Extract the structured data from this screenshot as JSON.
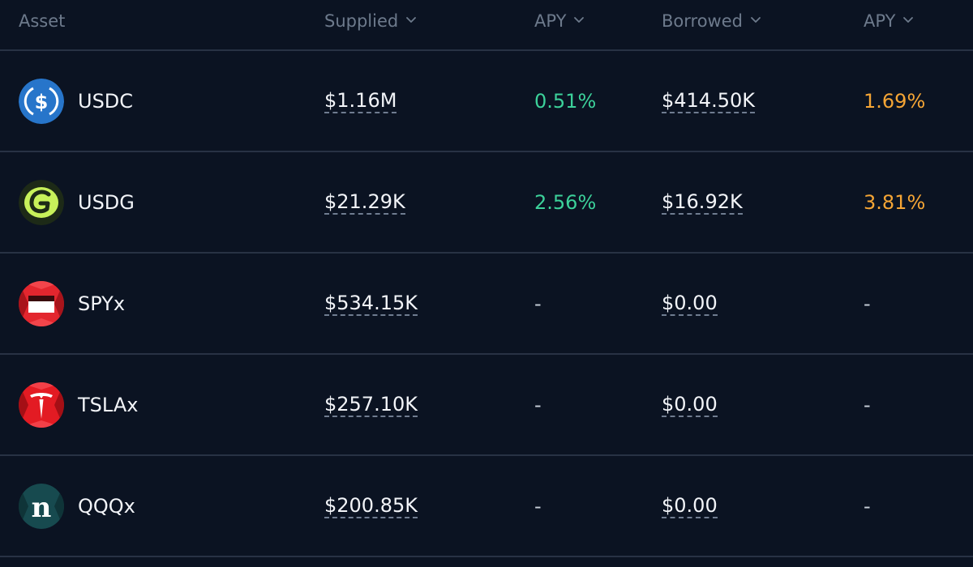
{
  "columns": {
    "asset": "Asset",
    "supplied": "Supplied",
    "supply_apy": "APY",
    "borrowed": "Borrowed",
    "borrow_apy": "APY"
  },
  "colors": {
    "background": "#0b1322",
    "supply_apy": "#3cd19a",
    "borrow_apy": "#f5a535",
    "header_text": "#6d7a8c"
  },
  "rows": [
    {
      "asset": "USDC",
      "icon": "usdc-icon",
      "supplied": "$1.16M",
      "supply_apy": "0.51%",
      "borrowed": "$414.50K",
      "borrow_apy": "1.69%"
    },
    {
      "asset": "USDG",
      "icon": "usdg-icon",
      "supplied": "$21.29K",
      "supply_apy": "2.56%",
      "borrowed": "$16.92K",
      "borrow_apy": "3.81%"
    },
    {
      "asset": "SPYx",
      "icon": "spyx-icon",
      "supplied": "$534.15K",
      "supply_apy": "-",
      "borrowed": "$0.00",
      "borrow_apy": "-"
    },
    {
      "asset": "TSLAx",
      "icon": "tslax-icon",
      "supplied": "$257.10K",
      "supply_apy": "-",
      "borrowed": "$0.00",
      "borrow_apy": "-"
    },
    {
      "asset": "QQQx",
      "icon": "qqqx-icon",
      "supplied": "$200.85K",
      "supply_apy": "-",
      "borrowed": "$0.00",
      "borrow_apy": "-"
    }
  ]
}
